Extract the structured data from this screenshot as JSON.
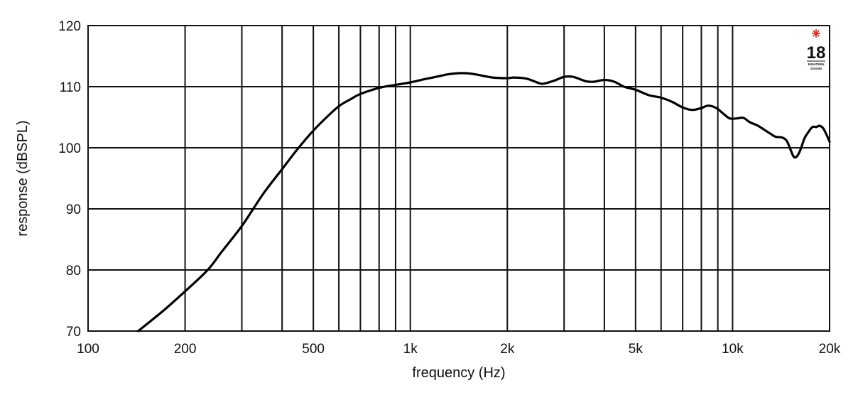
{
  "chart_data": {
    "type": "line",
    "xlabel": "frequency (Hz)",
    "ylabel": "response (dBSPL)",
    "xscale": "log",
    "xlim": [
      100,
      20000
    ],
    "ylim": [
      70,
      120
    ],
    "grid": true,
    "x_gridlines": [
      200,
      300,
      400,
      500,
      600,
      700,
      800,
      900,
      1000,
      2000,
      3000,
      4000,
      5000,
      6000,
      7000,
      8000,
      9000,
      10000
    ],
    "x_ticks": [
      {
        "value": 100,
        "label": "100"
      },
      {
        "value": 200,
        "label": "200"
      },
      {
        "value": 500,
        "label": "500"
      },
      {
        "value": 1000,
        "label": "1k"
      },
      {
        "value": 2000,
        "label": "2k"
      },
      {
        "value": 5000,
        "label": "5k"
      },
      {
        "value": 10000,
        "label": "10k"
      },
      {
        "value": 20000,
        "label": "20k"
      }
    ],
    "y_ticks": [
      {
        "value": 70,
        "label": "70"
      },
      {
        "value": 80,
        "label": "80"
      },
      {
        "value": 90,
        "label": "90"
      },
      {
        "value": 100,
        "label": "100"
      },
      {
        "value": 110,
        "label": "110"
      },
      {
        "value": 120,
        "label": "120"
      }
    ],
    "series": [
      {
        "color": "#000000",
        "points": [
          [
            143,
            70.0
          ],
          [
            170,
            73.2
          ],
          [
            200,
            76.5
          ],
          [
            235,
            80.0
          ],
          [
            260,
            83.0
          ],
          [
            300,
            87.2
          ],
          [
            350,
            92.5
          ],
          [
            400,
            96.5
          ],
          [
            450,
            100.0
          ],
          [
            500,
            102.8
          ],
          [
            550,
            105.0
          ],
          [
            600,
            106.8
          ],
          [
            650,
            107.9
          ],
          [
            700,
            108.8
          ],
          [
            800,
            109.8
          ],
          [
            900,
            110.3
          ],
          [
            1000,
            110.7
          ],
          [
            1100,
            111.2
          ],
          [
            1200,
            111.6
          ],
          [
            1300,
            112.0
          ],
          [
            1400,
            112.2
          ],
          [
            1500,
            112.2
          ],
          [
            1600,
            112.0
          ],
          [
            1800,
            111.5
          ],
          [
            2000,
            111.4
          ],
          [
            2100,
            111.5
          ],
          [
            2300,
            111.3
          ],
          [
            2500,
            110.6
          ],
          [
            2600,
            110.5
          ],
          [
            2800,
            111.0
          ],
          [
            3000,
            111.6
          ],
          [
            3200,
            111.6
          ],
          [
            3500,
            110.9
          ],
          [
            3700,
            110.8
          ],
          [
            4000,
            111.1
          ],
          [
            4300,
            110.8
          ],
          [
            4600,
            110.0
          ],
          [
            5000,
            109.5
          ],
          [
            5500,
            108.6
          ],
          [
            6000,
            108.2
          ],
          [
            6500,
            107.5
          ],
          [
            7000,
            106.6
          ],
          [
            7500,
            106.2
          ],
          [
            8000,
            106.5
          ],
          [
            8400,
            106.9
          ],
          [
            8900,
            106.5
          ],
          [
            9400,
            105.5
          ],
          [
            9800,
            104.8
          ],
          [
            10300,
            104.8
          ],
          [
            10800,
            104.9
          ],
          [
            11300,
            104.2
          ],
          [
            11900,
            103.7
          ],
          [
            12500,
            103.0
          ],
          [
            13100,
            102.3
          ],
          [
            13600,
            101.8
          ],
          [
            14200,
            101.7
          ],
          [
            14700,
            101.2
          ],
          [
            15100,
            99.8
          ],
          [
            15500,
            98.5
          ],
          [
            15900,
            98.7
          ],
          [
            16300,
            99.9
          ],
          [
            16700,
            101.5
          ],
          [
            17200,
            102.6
          ],
          [
            17700,
            103.4
          ],
          [
            18200,
            103.4
          ],
          [
            18600,
            103.6
          ],
          [
            19100,
            103.2
          ],
          [
            19500,
            102.3
          ],
          [
            20000,
            101.0
          ]
        ]
      }
    ]
  },
  "logo": {
    "number": "18",
    "line1": "EIGHTEEN",
    "line2": "SOUND",
    "star_color": "#e0231c"
  }
}
